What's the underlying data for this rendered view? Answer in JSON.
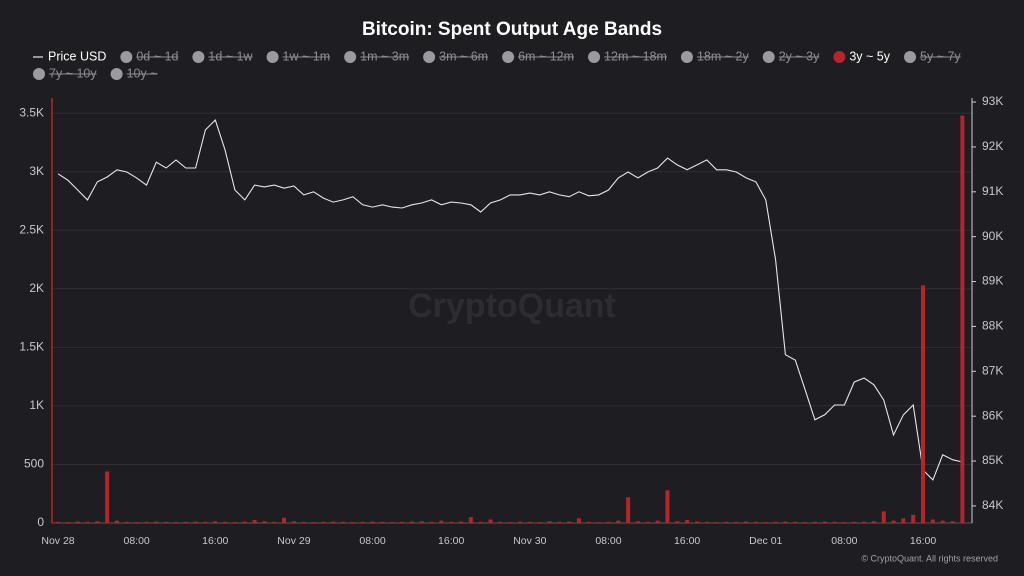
{
  "chart_data": {
    "type": "bar-line",
    "title": "Bitcoin: Spent Output Age Bands",
    "watermark": "CryptoQuant",
    "footer": "© CryptoQuant. All rights reserved",
    "categories": [
      "Nov 28",
      null,
      null,
      null,
      null,
      null,
      null,
      null,
      "08:00",
      null,
      null,
      null,
      null,
      null,
      null,
      null,
      "16:00",
      null,
      null,
      null,
      null,
      null,
      null,
      null,
      "Nov 29",
      null,
      null,
      null,
      null,
      null,
      null,
      null,
      "08:00",
      null,
      null,
      null,
      null,
      null,
      null,
      null,
      "16:00",
      null,
      null,
      null,
      null,
      null,
      null,
      null,
      "Nov 30",
      null,
      null,
      null,
      null,
      null,
      null,
      null,
      "08:00",
      null,
      null,
      null,
      null,
      null,
      null,
      null,
      "16:00",
      null,
      null,
      null,
      null,
      null,
      null,
      null,
      "Dec 01",
      null,
      null,
      null,
      null,
      null,
      null,
      null,
      "08:00",
      null,
      null,
      null,
      null,
      null,
      null,
      null,
      "16:00",
      null,
      null,
      null,
      null
    ],
    "series": [
      {
        "name": "Price USD",
        "kind": "line",
        "axis": "y2",
        "color": "#e6e6e6",
        "values": [
          91400,
          91260,
          91040,
          90820,
          91220,
          91330,
          91490,
          91440,
          91310,
          91150,
          91660,
          91530,
          91710,
          91530,
          91530,
          92380,
          92600,
          91930,
          91040,
          90820,
          91150,
          91110,
          91150,
          91080,
          91130,
          90930,
          91000,
          90860,
          90770,
          90820,
          90890,
          90710,
          90660,
          90710,
          90660,
          90640,
          90710,
          90750,
          90820,
          90710,
          90770,
          90750,
          90710,
          90550,
          90750,
          90820,
          90930,
          90930,
          90970,
          90930,
          91000,
          90930,
          90890,
          91000,
          90910,
          90930,
          91040,
          91310,
          91440,
          91310,
          91440,
          91530,
          91750,
          91600,
          91490,
          91600,
          91710,
          91490,
          91490,
          91440,
          91310,
          91220,
          90820,
          89480,
          87370,
          87250,
          86590,
          85920,
          86030,
          86250,
          86250,
          86760,
          86850,
          86700,
          86360,
          85580,
          86030,
          86250,
          84800,
          84580,
          85140,
          85030,
          84980
        ]
      },
      {
        "name": "3y ~ 5y",
        "kind": "bar",
        "color": "#b3262b",
        "values": [
          10,
          8,
          12,
          10,
          15,
          440,
          20,
          10,
          8,
          10,
          12,
          10,
          8,
          10,
          12,
          10,
          15,
          10,
          8,
          12,
          25,
          15,
          10,
          45,
          15,
          10,
          8,
          10,
          12,
          10,
          8,
          10,
          12,
          10,
          8,
          10,
          12,
          15,
          10,
          20,
          10,
          12,
          50,
          10,
          30,
          10,
          8,
          12,
          10,
          8,
          15,
          10,
          12,
          40,
          10,
          8,
          10,
          20,
          220,
          15,
          10,
          20,
          280,
          15,
          25,
          12,
          10,
          8,
          10,
          10,
          12,
          10,
          8,
          10,
          12,
          10,
          8,
          10,
          12,
          10,
          8,
          10,
          12,
          15,
          100,
          20,
          40,
          70,
          2030,
          30,
          20,
          15,
          3480
        ]
      }
    ],
    "inactive_series": [
      "0d ~ 1d",
      "1d ~ 1w",
      "1w ~ 1m",
      "1m ~ 3m",
      "3m ~ 6m",
      "6m ~ 12m",
      "12m ~ 18m",
      "18m ~ 2y",
      "2y ~ 3y",
      "5y ~ 7y",
      "7y ~ 10y",
      "10y ~"
    ],
    "inactive_color": "#9a9aa0",
    "ylim": [
      0,
      3630
    ],
    "yticks": [
      0,
      500,
      {
        "value": 1000,
        "label": "1K"
      },
      {
        "value": 1500,
        "label": "1.5K"
      },
      {
        "value": 2000,
        "label": "2K"
      },
      {
        "value": 2500,
        "label": "2.5K"
      },
      {
        "value": 3000,
        "label": "3K"
      },
      {
        "value": 3500,
        "label": "3.5K"
      }
    ],
    "y2lim": [
      83620,
      93090
    ],
    "y2ticks": [
      {
        "value": 84000,
        "label": "84K"
      },
      {
        "value": 85000,
        "label": "85K"
      },
      {
        "value": 86000,
        "label": "86K"
      },
      {
        "value": 87000,
        "label": "87K"
      },
      {
        "value": 88000,
        "label": "88K"
      },
      {
        "value": 89000,
        "label": "89K"
      },
      {
        "value": 90000,
        "label": "90K"
      },
      {
        "value": 91000,
        "label": "91K"
      },
      {
        "value": 92000,
        "label": "92K"
      },
      {
        "value": 93000,
        "label": "93K"
      }
    ],
    "grid": true
  }
}
